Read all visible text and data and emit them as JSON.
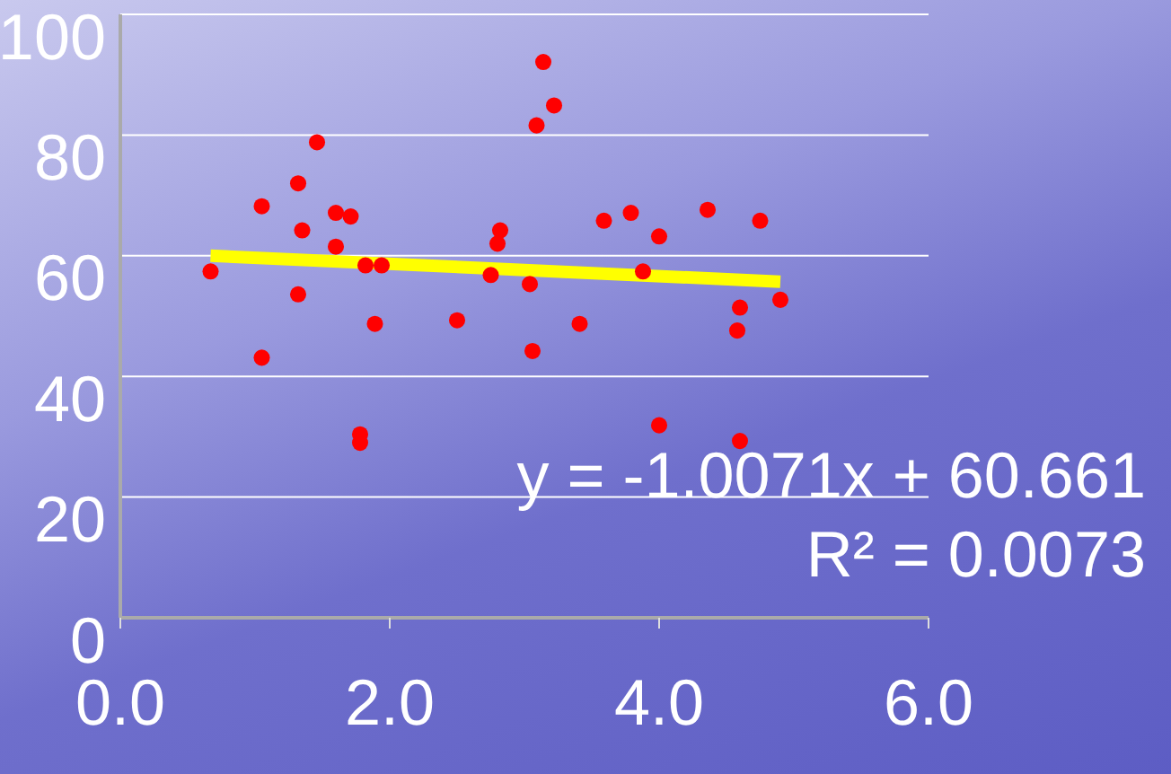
{
  "chart_data": {
    "type": "scatter",
    "xlim": [
      0,
      6
    ],
    "xticks": [
      {
        "value": 0,
        "label": "0.0"
      },
      {
        "value": 2,
        "label": "2.0"
      },
      {
        "value": 4,
        "label": "4.0"
      },
      {
        "value": 6,
        "label": "6.0"
      }
    ],
    "ylim": [
      0,
      100
    ],
    "yticks": [
      0,
      20,
      40,
      60,
      80,
      100
    ],
    "grid": "y",
    "series": [
      {
        "marker": "circle",
        "color": "#ff0000",
        "x": [
          0.67,
          1.05,
          1.05,
          1.32,
          1.46,
          1.35,
          1.32,
          1.6,
          1.71,
          1.6,
          1.82,
          1.94,
          1.89,
          1.78,
          1.78,
          2.5,
          2.75,
          2.82,
          2.8,
          3.04,
          3.06,
          3.09,
          3.14,
          3.22,
          3.41,
          3.59,
          3.79,
          3.88,
          4.0,
          4.0,
          4.36,
          4.75,
          4.6,
          4.58,
          4.9,
          4.6
        ],
        "values": [
          57.4,
          68.2,
          43.1,
          72,
          78.8,
          64.2,
          53.6,
          67.1,
          66.5,
          61.5,
          58.4,
          58.4,
          48.7,
          30.4,
          29,
          49.3,
          56.8,
          64.2,
          62,
          55.3,
          44.2,
          81.6,
          92.1,
          84.9,
          48.7,
          65.8,
          67.1,
          57.4,
          63.2,
          31.9,
          67.6,
          65.8,
          51.4,
          47.6,
          52.7,
          29.3
        ]
      },
      {
        "type": "line",
        "marker": "none",
        "color": "#ffff00",
        "x": [
          0.67,
          4.9
        ],
        "values": [
          60.0,
          55.7
        ]
      }
    ],
    "annotations": [
      "y = -1.0071x + 60.661",
      "R² = 0.0073"
    ]
  }
}
